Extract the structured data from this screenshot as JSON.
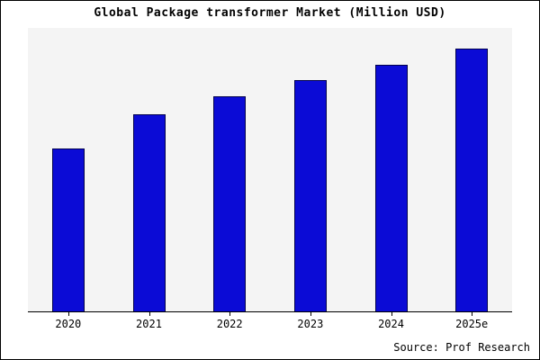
{
  "chart_data": {
    "type": "bar",
    "title": "Global Package transformer Market (Million USD)",
    "categories": [
      "2020",
      "2021",
      "2022",
      "2023",
      "2024",
      "2025e"
    ],
    "values": [
      62,
      75,
      82,
      88,
      94,
      100
    ],
    "value_note": "relative heights; no y-axis scale shown in chart",
    "xlabel": "",
    "ylabel": "",
    "ylim": [
      0,
      108
    ],
    "grid": false,
    "legend_position": "none",
    "bar_color": "#0b0bd6",
    "bar_border_color": "#00004d",
    "plot_background": "#f4f4f4"
  },
  "source": "Source: Prof Research"
}
